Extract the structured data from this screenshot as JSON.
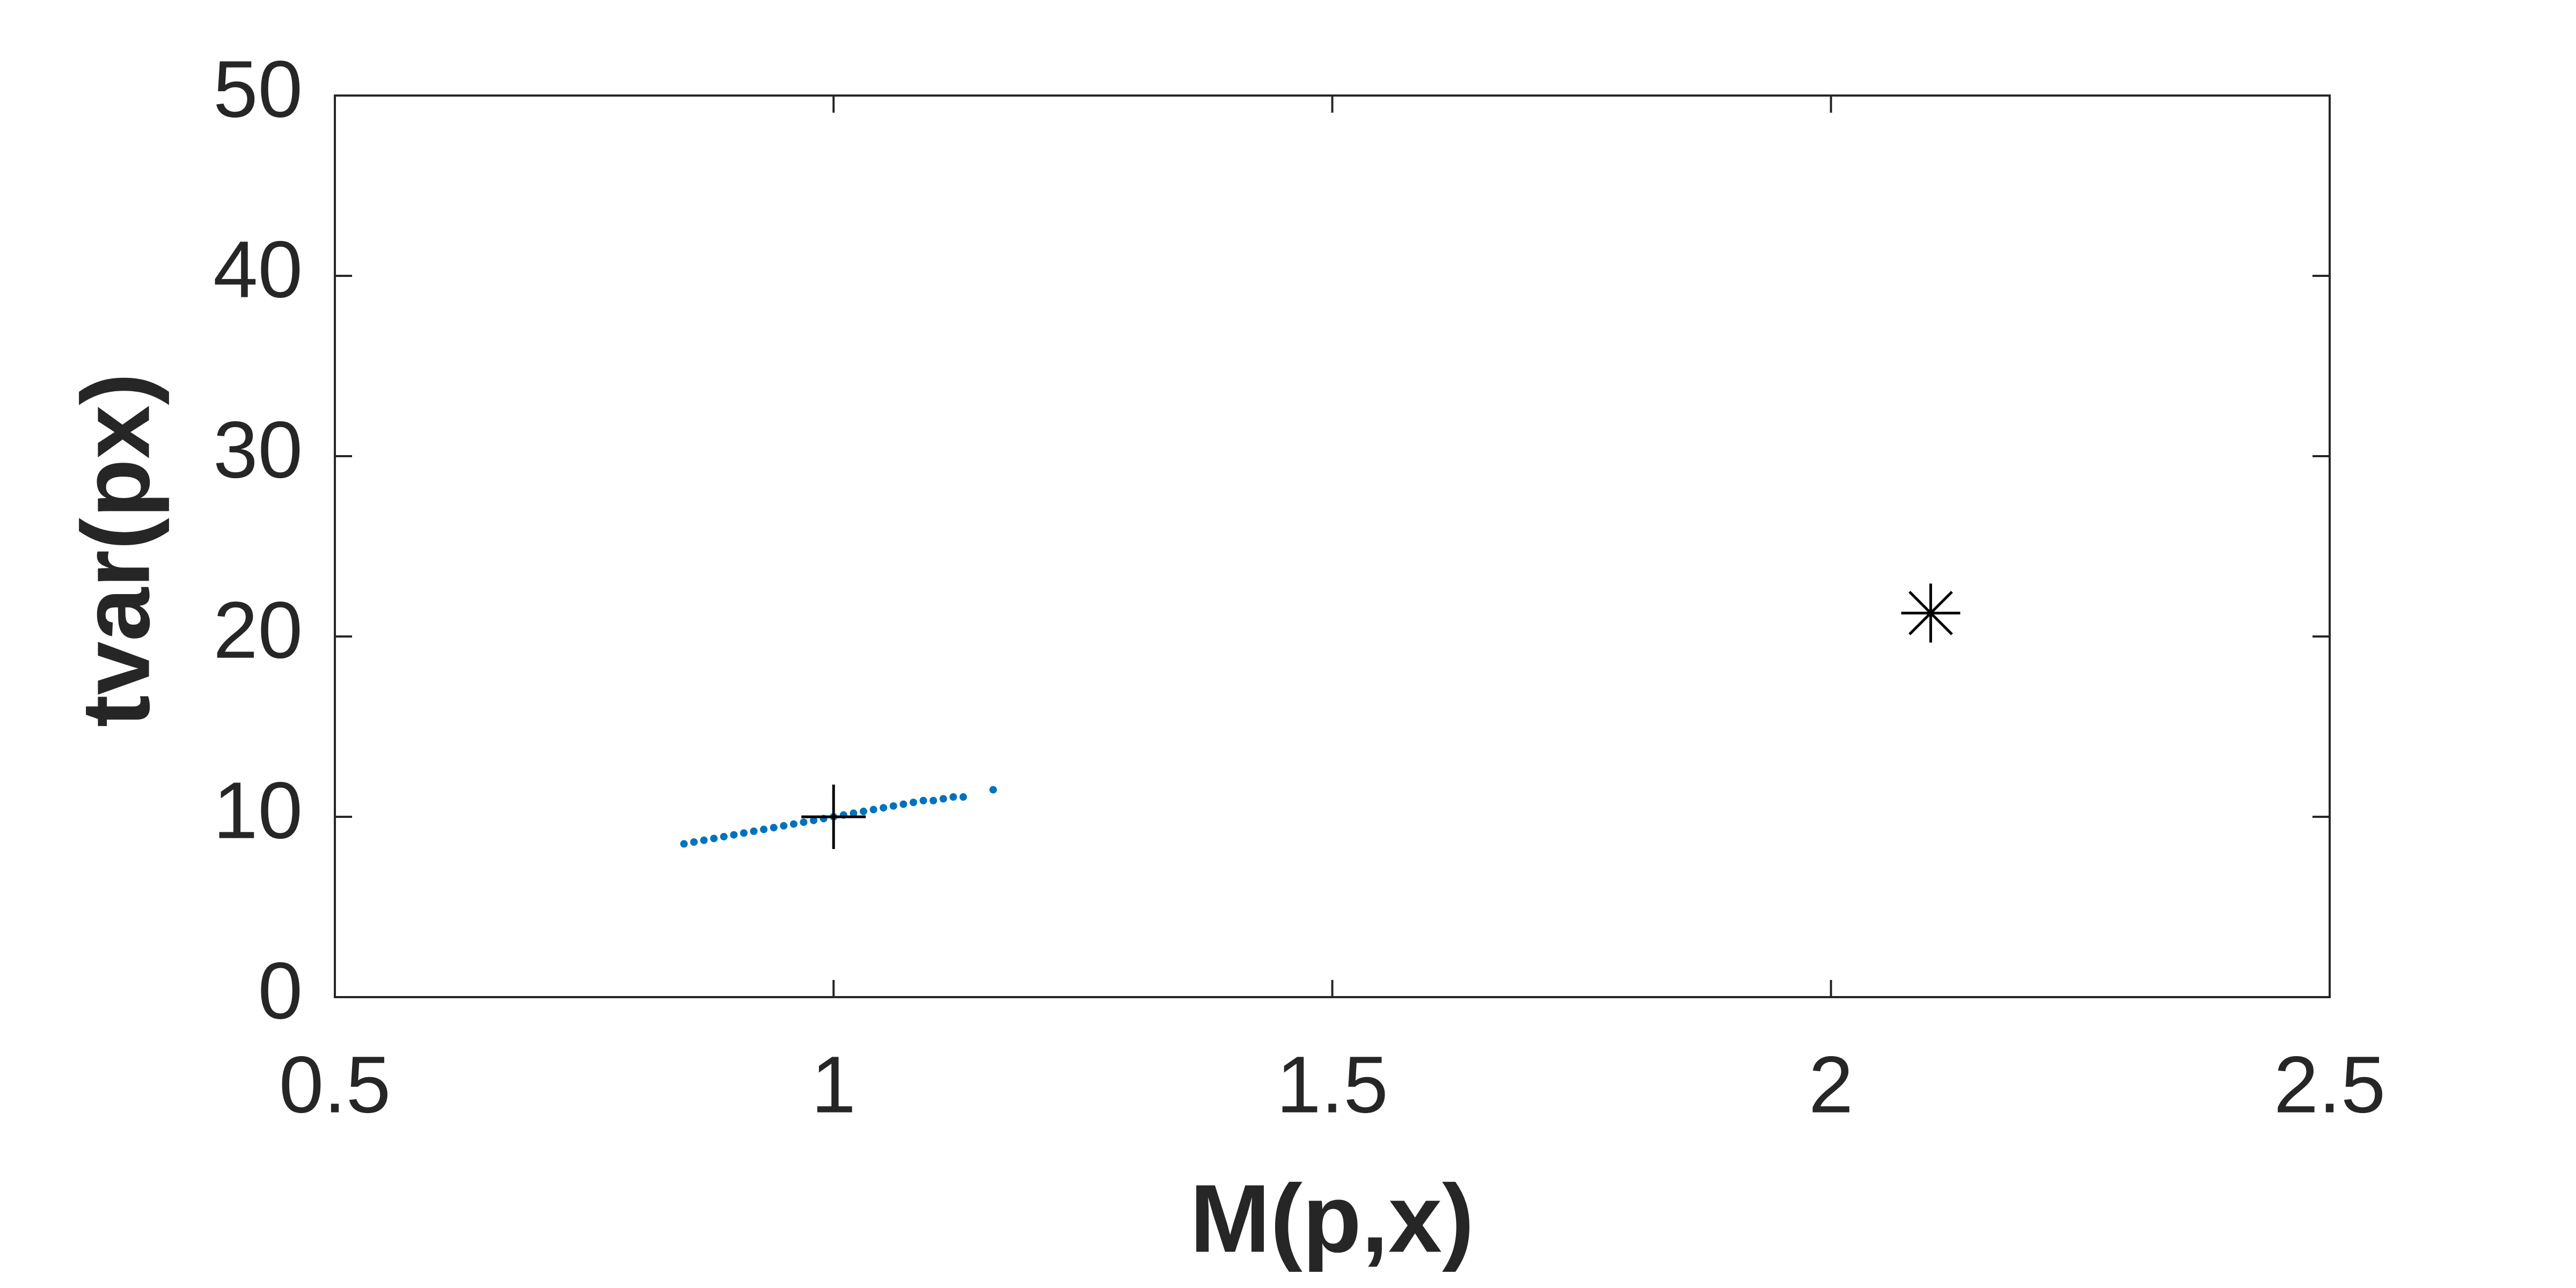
{
  "chart_data": {
    "type": "scatter",
    "xlabel": "M(p,x)",
    "ylabel": "tvar(px)",
    "xlim": [
      0.5,
      2.5
    ],
    "xticks": [
      0.5,
      1,
      1.5,
      2,
      2.5
    ],
    "ylim": [
      0,
      50
    ],
    "yticks": [
      0,
      10,
      20,
      30,
      40,
      50
    ],
    "grid": false,
    "box": true,
    "series": [
      {
        "color": "#0072bd",
        "marker": "dot",
        "x": [
          0.85,
          0.86,
          0.87,
          0.88,
          0.89,
          0.9,
          0.91,
          0.92,
          0.93,
          0.94,
          0.95,
          0.96,
          0.97,
          0.98,
          0.99,
          1.0,
          1.01,
          1.02,
          1.03,
          1.04,
          1.05,
          1.06,
          1.07,
          1.08,
          1.09,
          1.1,
          1.11,
          1.12,
          1.13,
          1.16
        ],
        "values": [
          8.5,
          8.6,
          8.7,
          8.8,
          8.9,
          9.0,
          9.1,
          9.2,
          9.3,
          9.4,
          9.5,
          9.6,
          9.7,
          9.8,
          9.9,
          10.0,
          10.1,
          10.2,
          10.3,
          10.4,
          10.5,
          10.6,
          10.7,
          10.8,
          10.9,
          10.9,
          11.0,
          11.1,
          11.1,
          11.5
        ]
      },
      {
        "color": "#000000",
        "marker": "plus",
        "x": [
          1.0
        ],
        "values": [
          10
        ]
      },
      {
        "color": "#000000",
        "marker": "asterisk",
        "x": [
          2.1
        ],
        "values": [
          21.3
        ]
      }
    ]
  }
}
